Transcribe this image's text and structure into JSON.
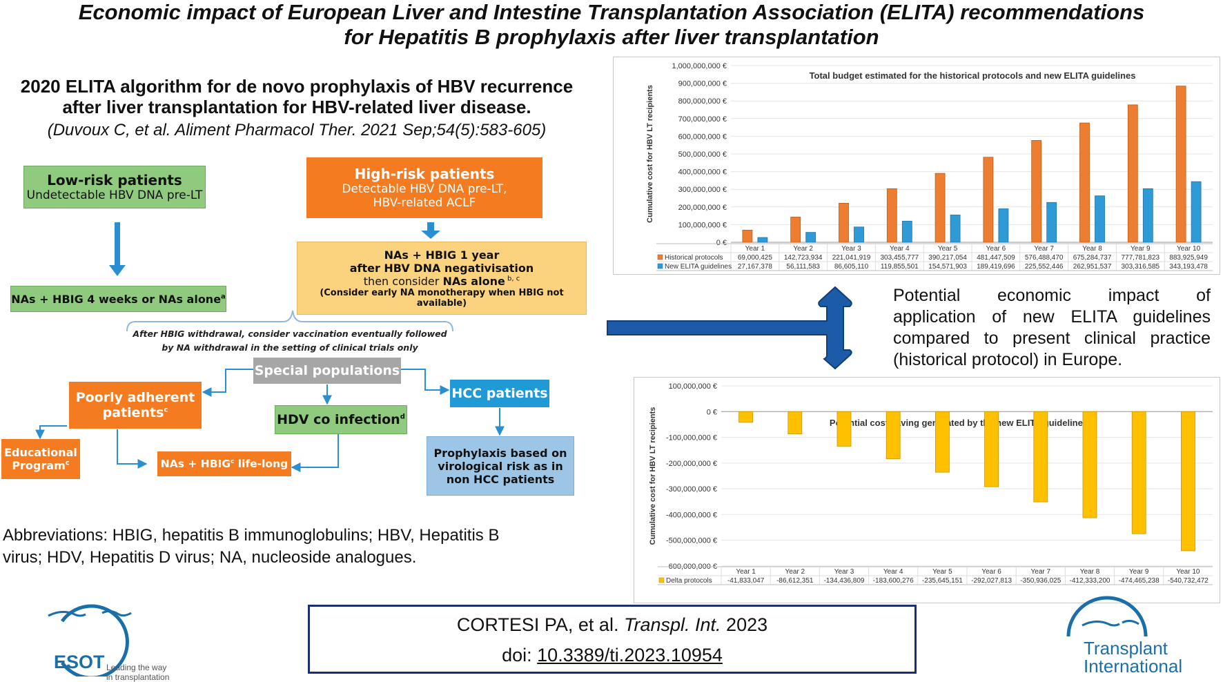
{
  "title": {
    "line1": "Economic impact of European Liver and Intestine Transplantation Association (ELITA) recommendations",
    "line2": "for Hepatitis B prophylaxis after liver transplantation"
  },
  "algorithm": {
    "title_line1": "2020 ELITA algorithm for de novo prophylaxis of HBV recurrence",
    "title_line2": "after liver transplantation for HBV-related liver disease.",
    "citation": "(Duvoux C, et al. Aliment Pharmacol Ther. 2021 Sep;54(5):583-605)",
    "low_risk": {
      "title": "Low-risk patients",
      "sub": "Undetectable HBV DNA pre-LT"
    },
    "low_risk_tx": {
      "text": "NAs + HBIG 4 weeks or NAs alone",
      "sup": "a"
    },
    "high_risk": {
      "title": "High-risk patients",
      "sub1": "Detectable HBV DNA pre-LT,",
      "sub2": "HBV-related ACLF"
    },
    "high_risk_tx": {
      "line1": "NAs + HBIG 1 year",
      "line2": "after HBV DNA negativisation",
      "line3a": "then consider ",
      "line3b": "NAs alone",
      "line3sup": " b, c",
      "line4": "(Consider early NA monotherapy when HBIG not available)"
    },
    "withdrawal_note": {
      "line1": "After HBIG withdrawal, consider vaccination eventually followed",
      "line2": "by NA withdrawal in the setting of clinical trials only"
    },
    "special": "Special populations",
    "poorly": {
      "line1": "Poorly adherent",
      "line2": "patients",
      "sup": "c"
    },
    "hdv": {
      "text": "HDV co infection",
      "sup": "d"
    },
    "hcc": "HCC patients",
    "educational": {
      "line1": "Educational",
      "line2": "Program",
      "sup": "c"
    },
    "nas_life": {
      "a": "NAs + HBIG",
      "sup": "c",
      "b": " life-long"
    },
    "hcc_tx": {
      "line1": "Prophylaxis based on",
      "line2": "virological risk as in",
      "line3": "non HCC patients"
    }
  },
  "abbreviations": {
    "line1": "Abbreviations: HBIG, hepatitis B immunoglobulins; HBV, Hepatitis B",
    "line2": "virus; HDV, Hepatitis D virus; NA, nucleoside analogues."
  },
  "potential_text": {
    "line1": "Potential economic impact of",
    "line2": "application of new ELITA guidelines",
    "line3": "compared to present clinical practice",
    "line4": "(historical protocol) in Europe."
  },
  "citation_box": {
    "authors": "CORTESI PA, et al.",
    "journal": "Transpl. Int.",
    "year": "2023",
    "doi_label": "doi:",
    "doi": "10.3389/ti.2023.10954"
  },
  "logos": {
    "esot_name": "ESOT",
    "esot_tag1": "Leading the way",
    "esot_tag2": "in transplantation",
    "ti_line1": "Transplant",
    "ti_line2": "International"
  },
  "colors": {
    "historical": "#ed7d31",
    "elita": "#2e9bd6",
    "delta": "#ffc000",
    "cite_border": "#1a2e74",
    "logo_blue": "#1b6fa8"
  },
  "chart_data": [
    {
      "type": "bar",
      "title": "Total budget estimated for the historical protocols and new ELITA guidelines",
      "ylabel": "Cumulative cost for HBV LT recipients",
      "xlabel": "",
      "ylim": [
        0,
        1000000000
      ],
      "yticks": [
        "1,000,000,000 €",
        "900,000,000 €",
        "800,000,000 €",
        "700,000,000 €",
        "600,000,000 €",
        "500,000,000 €",
        "400,000,000 €",
        "300,000,000 €",
        "200,000,000 €",
        "100,000,000 €",
        "0 €"
      ],
      "categories": [
        "Year 1",
        "Year 2",
        "Year 3",
        "Year 4",
        "Year 5",
        "Year 6",
        "Year 7",
        "Year 8",
        "Year 9",
        "Year 10"
      ],
      "series": [
        {
          "name": "Historical protocols",
          "values": [
            69000425,
            142723934,
            221041919,
            303455777,
            390217054,
            481447509,
            576488470,
            675284737,
            777781823,
            883925949
          ],
          "labels": [
            "69,000,425",
            "142,723,934",
            "221,041,919",
            "303,455,777",
            "390,217,054",
            "481,447,509",
            "576,488,470",
            "675,284,737",
            "777,781,823",
            "883,925,949"
          ]
        },
        {
          "name": "New ELITA guidelines",
          "values": [
            27167378,
            56111583,
            86605110,
            119855501,
            154571903,
            189419696,
            225552446,
            262951537,
            303316585,
            343193478
          ],
          "labels": [
            "27,167,378",
            "56,111,583",
            "86,605,110",
            "119,855,501",
            "154,571,903",
            "189,419,696",
            "225,552,446",
            "262,951,537",
            "303,316,585",
            "343,193,478"
          ]
        }
      ]
    },
    {
      "type": "bar",
      "title": "Potential cost saving generated by the new ELITA guidelines",
      "ylabel": "Cumulative cost for HBV LT recipients",
      "xlabel": "",
      "ylim": [
        -600000000,
        100000000
      ],
      "yticks": [
        "100,000,000 €",
        "0 €",
        "-100,000,000 €",
        "-200,000,000 €",
        "-300,000,000 €",
        "-400,000,000 €",
        "-500,000,000 €",
        "-600,000,000 €"
      ],
      "categories": [
        "Year 1",
        "Year 2",
        "Year 3",
        "Year 4",
        "Year 5",
        "Year 6",
        "Year 7",
        "Year 8",
        "Year 9",
        "Year 10"
      ],
      "series": [
        {
          "name": "Delta protocols",
          "values": [
            -41833047,
            -86612351,
            -134436809,
            -183600276,
            -235645151,
            -292027813,
            -350936025,
            -412333200,
            -474465238,
            -540732472
          ],
          "labels": [
            "-41,833,047",
            "-86,612,351",
            "-134,436,809",
            "-183,600,276",
            "-235,645,151",
            "-292,027,813",
            "-350,936,025",
            "-412,333,200",
            "-474,465,238",
            "-540,732,472"
          ]
        }
      ]
    }
  ]
}
